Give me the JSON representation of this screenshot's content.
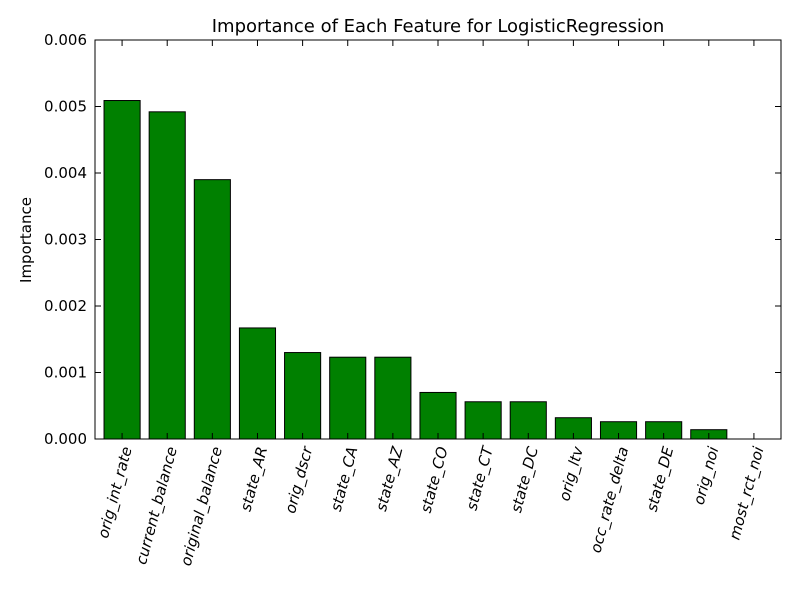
{
  "chart_data": {
    "type": "bar",
    "title": "Importance of Each Feature for LogisticRegression",
    "xlabel": "",
    "ylabel": "Importance",
    "categories": [
      "orig_int_rate",
      "current_balance",
      "original_balance",
      "state_AR",
      "orig_dscr",
      "state_CA",
      "state_AZ",
      "state_CO",
      "state_CT",
      "state_DC",
      "orig_ltv",
      "occ_rate_delta",
      "state_DE",
      "orig_noi",
      "most_rct_noi"
    ],
    "values": [
      0.00509,
      0.00492,
      0.0039,
      0.00167,
      0.0013,
      0.00123,
      0.00123,
      0.0007,
      0.00056,
      0.00056,
      0.00032,
      0.00026,
      0.00026,
      0.00014,
      0.0
    ],
    "ylim": [
      0,
      0.006
    ],
    "yticks": [
      "0.000",
      "0.001",
      "0.002",
      "0.003",
      "0.004",
      "0.005",
      "0.006"
    ],
    "grid": false,
    "bar_color": "#008000",
    "edge_color": "#000000"
  }
}
